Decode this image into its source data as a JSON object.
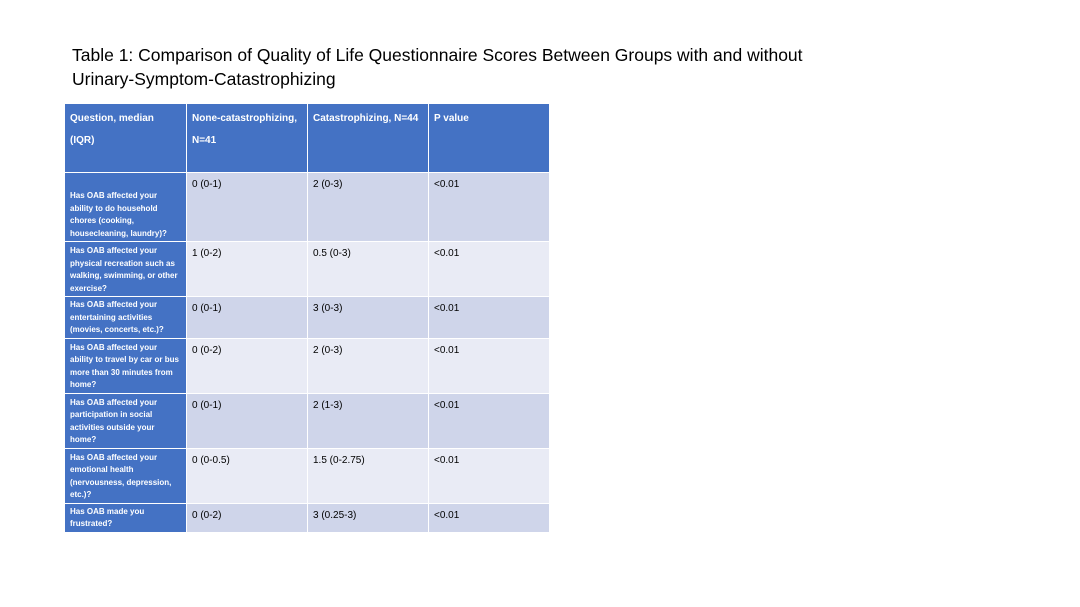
{
  "title": "Table 1: Comparison of Quality of Life Questionnaire Scores Between Groups with and without Urinary-Symptom-Catastrophizing",
  "table": {
    "headers": [
      "Question, median (IQR)",
      "None-catastrophizing, N=41",
      "Catastrophizing, N=44",
      "P value"
    ],
    "rows": [
      {
        "question": "Has OAB affected your ability to do household chores (cooking, housecleaning, laundry)?",
        "none": "0 (0-1)",
        "cat": "2 (0-3)",
        "p": "<0.01"
      },
      {
        "question": "Has OAB affected your physical recreation such as walking, swimming, or other exercise?",
        "none": "1 (0-2)",
        "cat": "0.5 (0-3)",
        "p": "<0.01"
      },
      {
        "question": "Has OAB affected your entertaining activities (movies, concerts, etc.)?",
        "none": "0 (0-1)",
        "cat": "3 (0-3)",
        "p": "<0.01"
      },
      {
        "question": "Has OAB affected your ability to travel by car or bus more than 30 minutes from home?",
        "none": "0 (0-2)",
        "cat": "2 (0-3)",
        "p": "<0.01"
      },
      {
        "question": "Has OAB affected your participation in social activities outside your home?",
        "none": "0 (0-1)",
        "cat": "2 (1-3)",
        "p": "<0.01"
      },
      {
        "question": "Has OAB affected your emotional health (nervousness, depression, etc.)?",
        "none": "0 (0-0.5)",
        "cat": "1.5 (0-2.75)",
        "p": "<0.01"
      },
      {
        "question": "Has OAB made you frustrated?",
        "none": "0 (0-2)",
        "cat": "3 (0.25-3)",
        "p": "<0.01"
      }
    ]
  }
}
